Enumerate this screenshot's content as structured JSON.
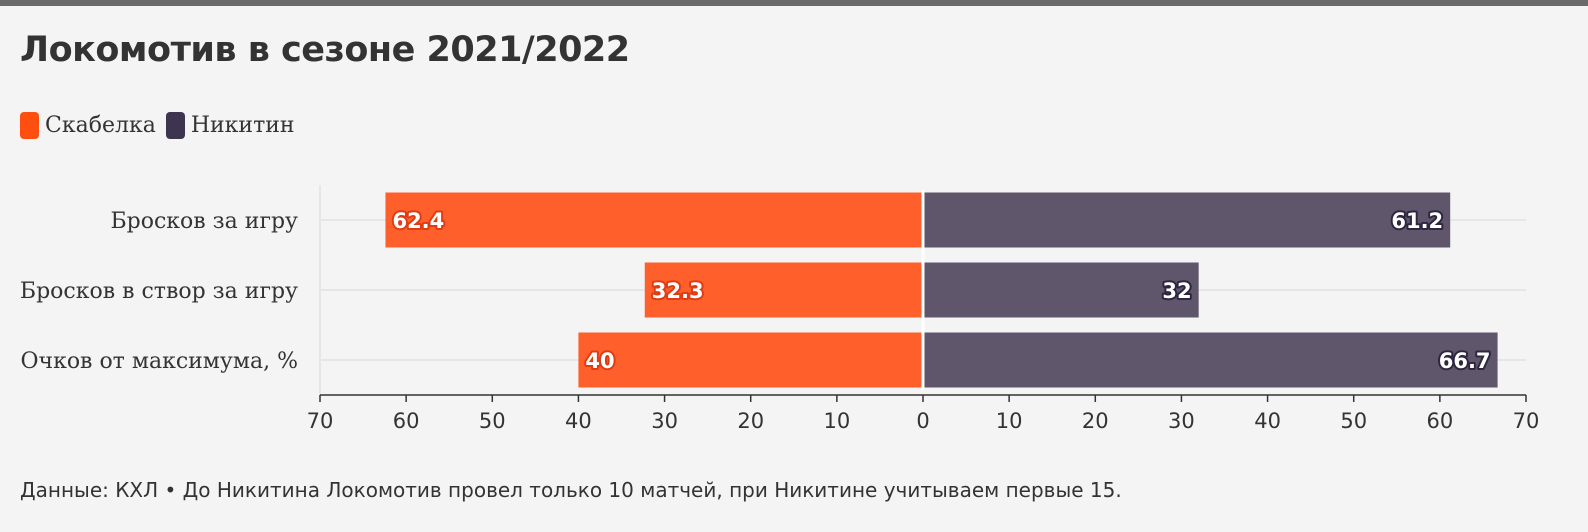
{
  "title": "Локомотив в сезоне 2021/2022",
  "source": "Данные: КХЛ • До Никитина Локомотив провел только 10 матчей, при Никитине учитываем первые 15.",
  "colors": {
    "left": "#ff5f2b",
    "right": "#60566b",
    "background": "#f4f4f4"
  },
  "chart_data": {
    "type": "bar",
    "orientation": "horizontal-diverging",
    "categories": [
      "Бросков за игру",
      "Бросков в створ за игру",
      "Очков от максимума, %"
    ],
    "series": [
      {
        "name": "Скабелка",
        "side": "left",
        "color": "#ff5f2b",
        "values": [
          62.4,
          32.3,
          40
        ],
        "labels": [
          "62.4",
          "32.3",
          "40"
        ]
      },
      {
        "name": "Никитин",
        "side": "right",
        "color": "#60566b",
        "values": [
          61.2,
          32,
          66.7
        ],
        "labels": [
          "61.2",
          "32",
          "66.7"
        ]
      }
    ],
    "xlim": [
      -70,
      70
    ],
    "ticks": [
      -70,
      -60,
      -50,
      -40,
      -30,
      -20,
      -10,
      0,
      10,
      20,
      30,
      40,
      50,
      60,
      70
    ],
    "tick_labels": [
      "70",
      "60",
      "50",
      "40",
      "30",
      "20",
      "10",
      "0",
      "10",
      "20",
      "30",
      "40",
      "50",
      "60",
      "70"
    ],
    "grid": true,
    "legend": "top-left"
  }
}
